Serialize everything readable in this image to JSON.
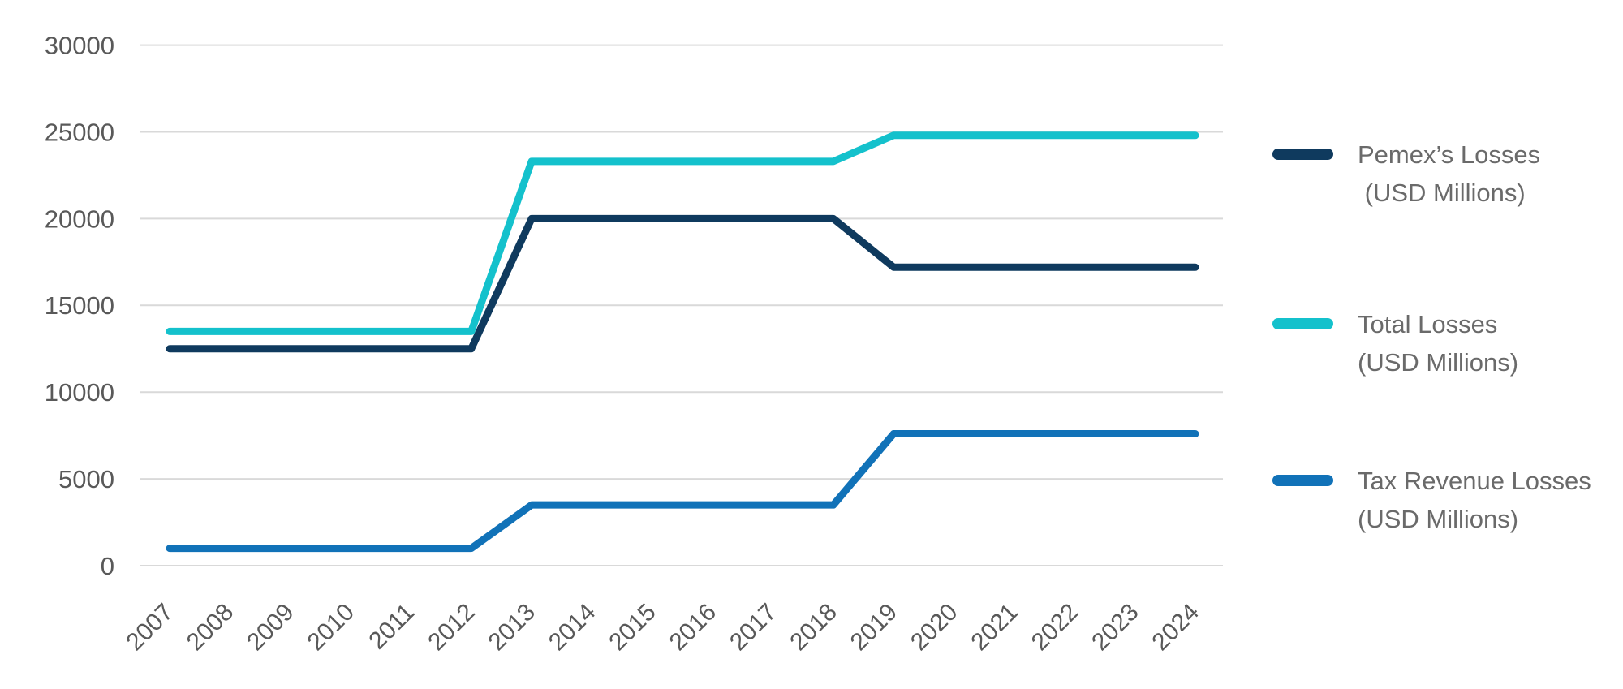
{
  "chart_data": {
    "type": "line",
    "title": "",
    "xlabel": "",
    "ylabel": "",
    "categories": [
      "2007",
      "2008",
      "2009",
      "2010",
      "2011",
      "2012",
      "2013",
      "2014",
      "2015",
      "2016",
      "2017",
      "2018",
      "2019",
      "2020",
      "2021",
      "2022",
      "2023",
      "2024"
    ],
    "series": [
      {
        "name": "Pemex’s Losses (USD Millions)",
        "legend_label": "Pemex’s Losses\n (USD Millions)",
        "color": "#0f3a5e",
        "values": [
          12500,
          12500,
          12500,
          12500,
          12500,
          12500,
          20000,
          20000,
          20000,
          20000,
          20000,
          20000,
          17200,
          17200,
          17200,
          17200,
          17200,
          17200
        ]
      },
      {
        "name": "Total Losses (USD Millions)",
        "legend_label": "Total Losses\n(USD Millions)",
        "color": "#14c1cc",
        "values": [
          13500,
          13500,
          13500,
          13500,
          13500,
          13500,
          23300,
          23300,
          23300,
          23300,
          23300,
          23300,
          24800,
          24800,
          24800,
          24800,
          24800,
          24800
        ]
      },
      {
        "name": "Tax Revenue Losses (USD Millions)",
        "legend_label": "Tax Revenue Losses\n(USD Millions)",
        "color": "#1172b8",
        "values": [
          1000,
          1000,
          1000,
          1000,
          1000,
          1000,
          3500,
          3500,
          3500,
          3500,
          3500,
          3500,
          7600,
          7600,
          7600,
          7600,
          7600,
          7600
        ]
      }
    ],
    "y_axis": {
      "ticks": [
        0,
        5000,
        10000,
        15000,
        20000,
        25000,
        30000
      ],
      "range": [
        0,
        30000
      ]
    },
    "x_axis": {
      "label_rotation_deg": -45
    },
    "grid": true,
    "legend_position": "right",
    "style": {
      "grid_color": "#d9d9d9",
      "tick_label_color": "#595959",
      "legend_text_color": "#6a6a6a",
      "background": "#ffffff",
      "line_width": 9
    }
  }
}
